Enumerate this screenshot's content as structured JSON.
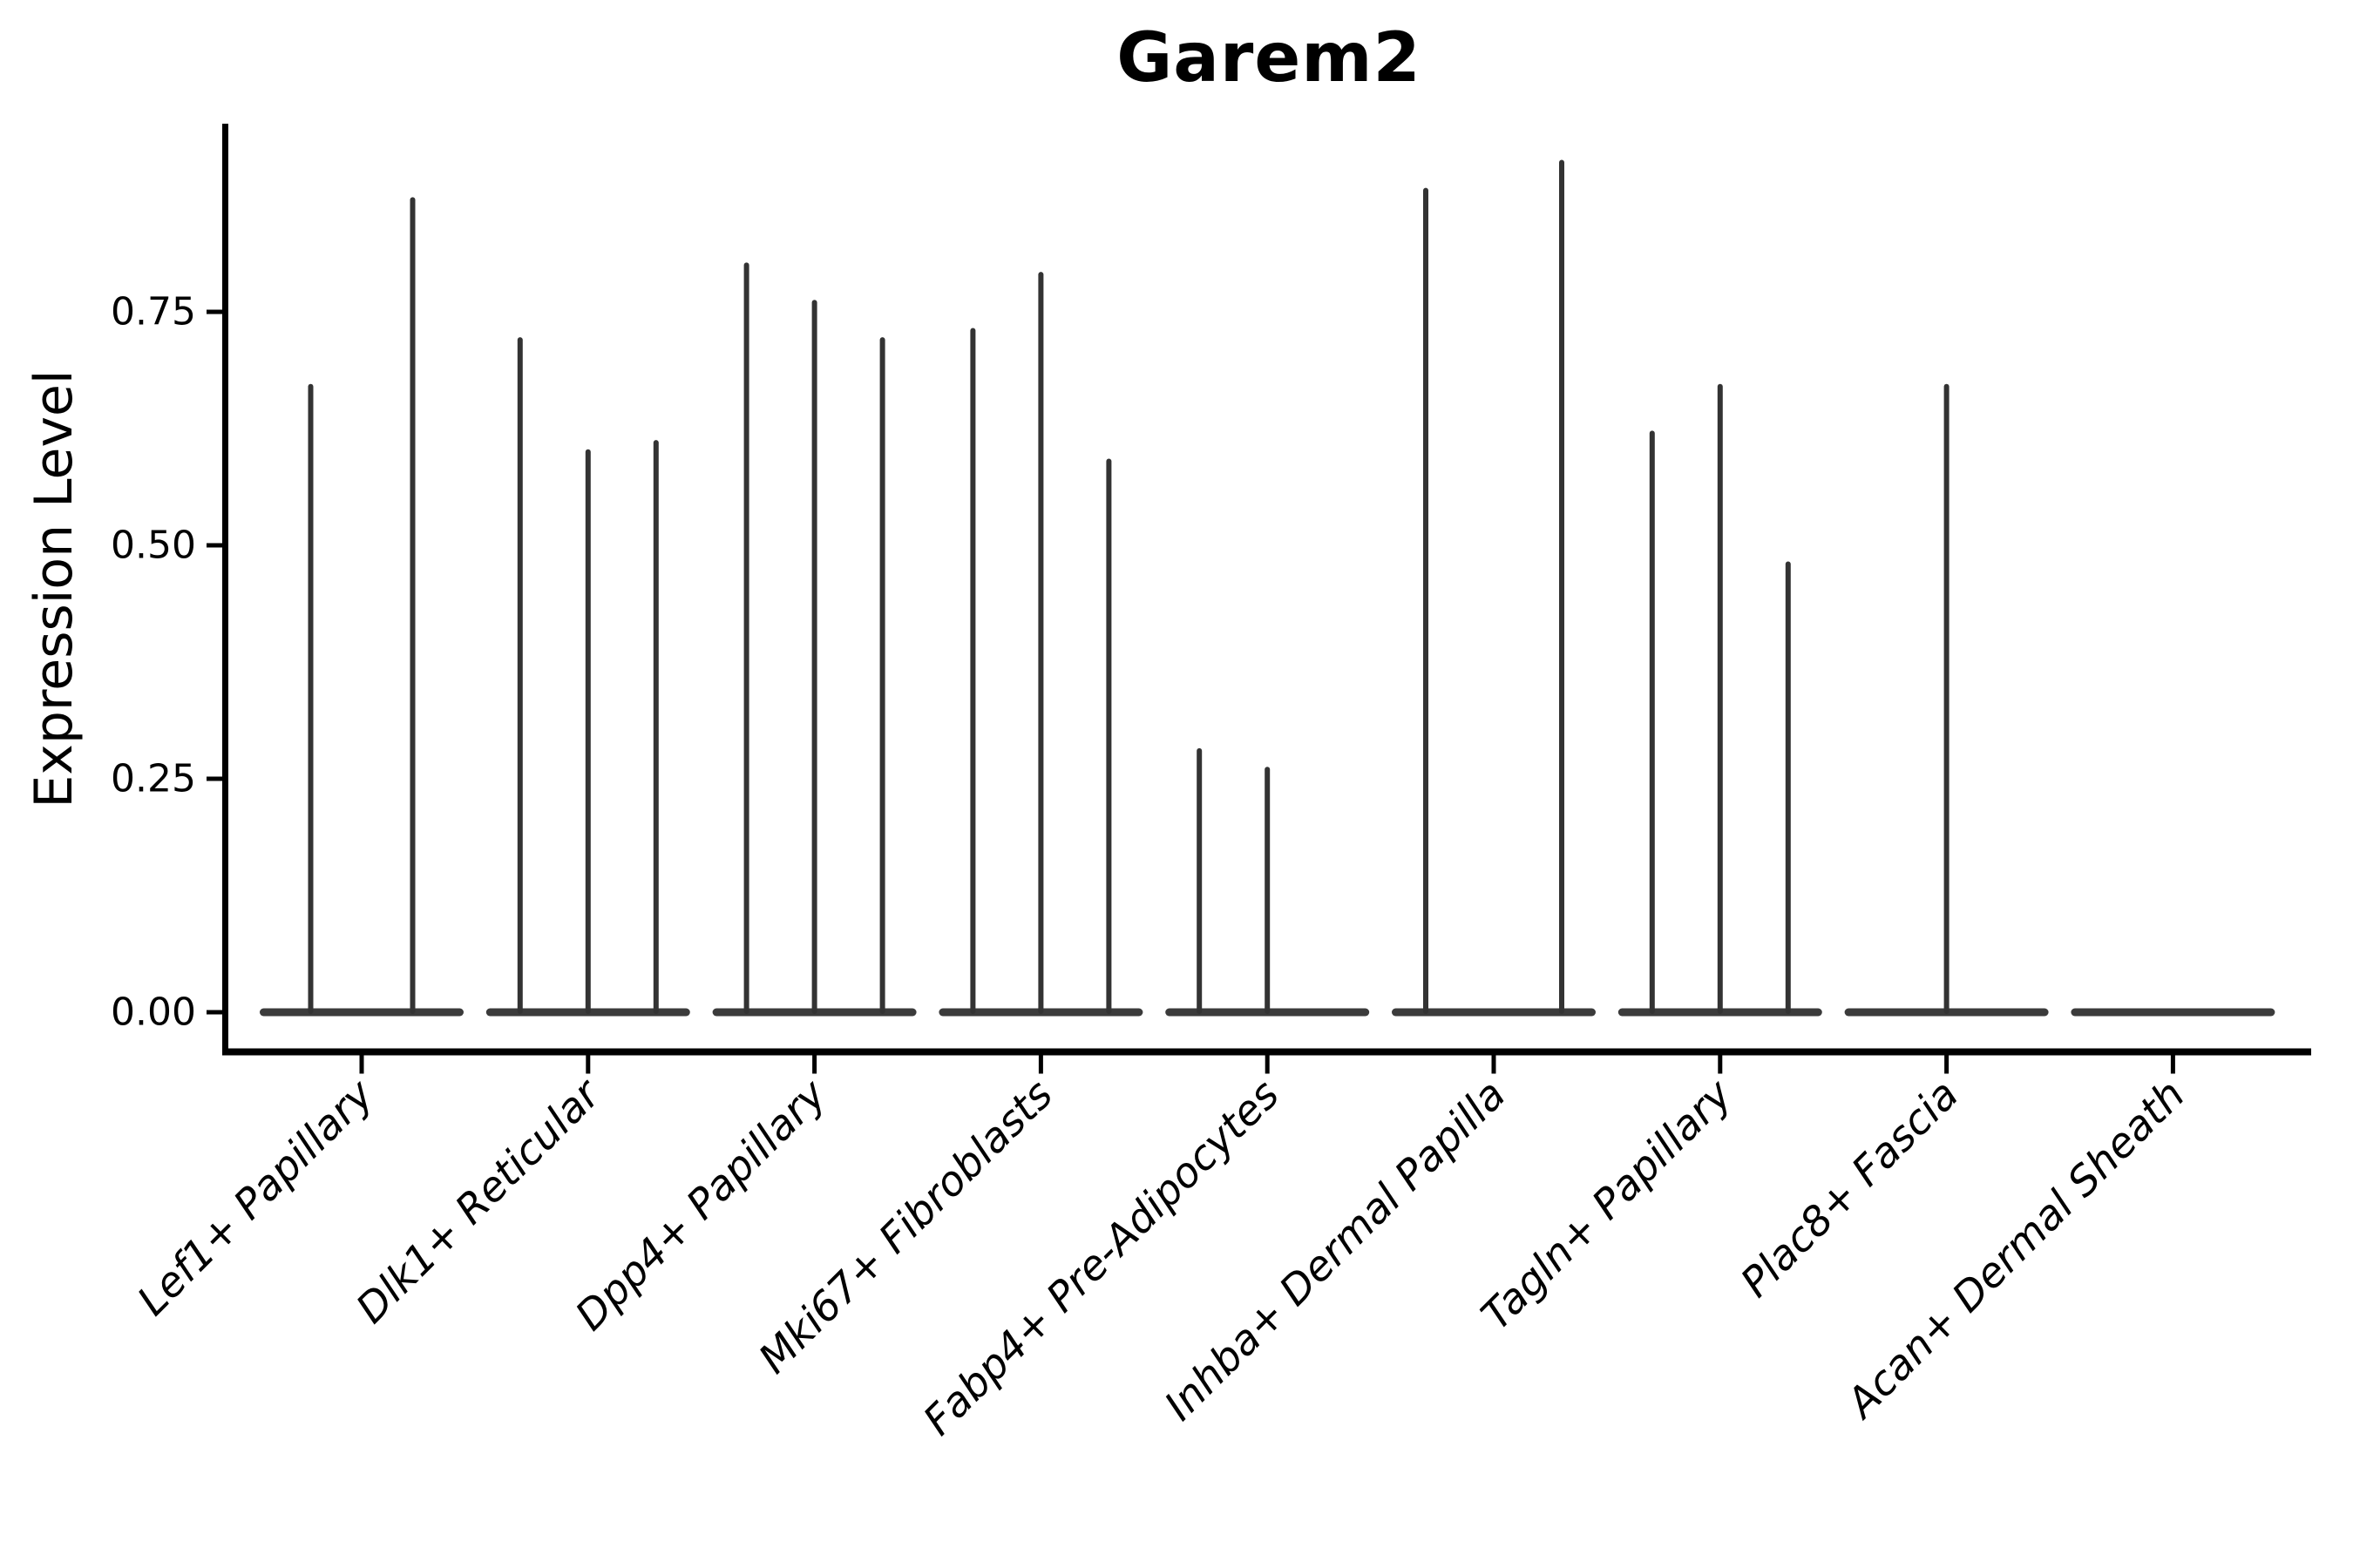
{
  "chart_data": {
    "type": "violin",
    "title": "Garem2",
    "ylabel": "Expression Level",
    "xlabel": "",
    "ylim": [
      0,
      0.95
    ],
    "yticks": [
      0.0,
      0.25,
      0.5,
      0.75
    ],
    "ytick_labels": [
      "0.00",
      "0.25",
      "0.50",
      "0.75"
    ],
    "grid": false,
    "legend_position": "none",
    "axis_color": "#000000",
    "text_color": "#000000",
    "violin_color": "#333333",
    "violin_base_color": "#3b3b3b",
    "categories": [
      "Lef1+ Papillary",
      "Dlk1+ Reticular",
      "Dpp4+ Papillary",
      "Mki67+ Fibroblasts",
      "Fabp4+ Pre-Adipocytes",
      "Inhba+ Dermal Papilla",
      "Tagln+ Papillary",
      "Plac8+ Fascia",
      "Acan+ Dermal Sheath"
    ],
    "groups": [
      {
        "category": "Lef1+ Papillary",
        "violin_max_values": [
          0.67,
          0.87
        ]
      },
      {
        "category": "Dlk1+ Reticular",
        "violin_max_values": [
          0.72,
          0.6,
          0.61
        ]
      },
      {
        "category": "Dpp4+ Papillary",
        "violin_max_values": [
          0.8,
          0.76,
          0.72
        ]
      },
      {
        "category": "Mki67+ Fibroblasts",
        "violin_max_values": [
          0.73,
          0.79,
          0.59
        ]
      },
      {
        "category": "Fabp4+ Pre-Adipocytes",
        "violin_max_values": [
          0.28,
          0.26,
          0
        ]
      },
      {
        "category": "Inhba+ Dermal Papilla",
        "violin_max_values": [
          0.88,
          0,
          0.91
        ]
      },
      {
        "category": "Tagln+ Papillary",
        "violin_max_values": [
          0.62,
          0.67,
          0.48
        ]
      },
      {
        "category": "Plac8+ Fascia",
        "violin_max_values": [
          0.67
        ]
      },
      {
        "category": "Acan+ Dermal Sheath",
        "violin_max_values": [
          0
        ]
      }
    ]
  }
}
